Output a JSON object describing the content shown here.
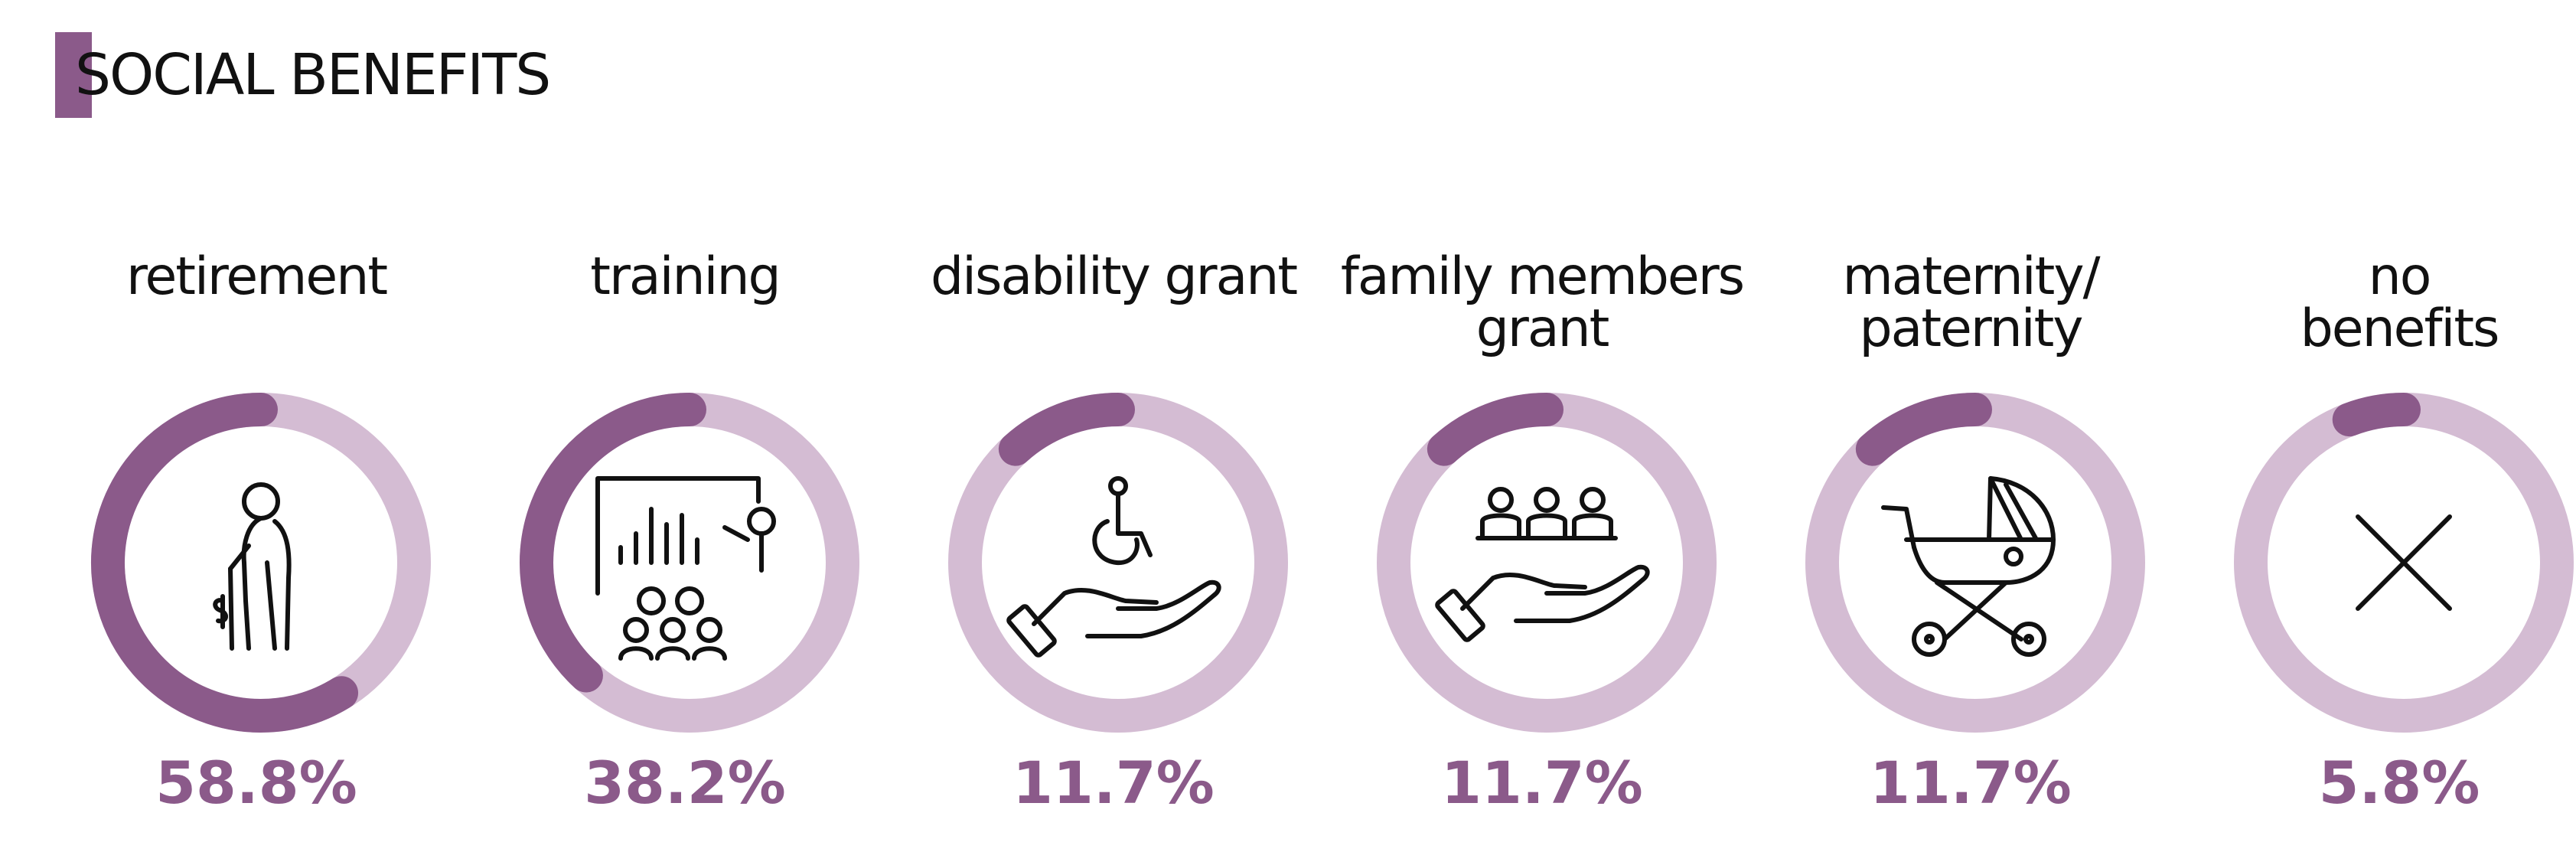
{
  "header": {
    "title": "SOCIAL BENEFITS"
  },
  "colors": {
    "accent": "#8b5a8a",
    "track": "#d4bcd3",
    "text": "#111111"
  },
  "chart_data": {
    "type": "donut",
    "title": "SOCIAL BENEFITS",
    "unit": "%",
    "categories": [
      "retirement",
      "training",
      "disability grant",
      "family members grant",
      "maternity/ paternity",
      "no benefits"
    ],
    "values": [
      58.8,
      38.2,
      11.7,
      11.7,
      11.7,
      5.8
    ],
    "display_labels": [
      "58.8%",
      "38.2%",
      "11.7%",
      "11.7%",
      "11.7%",
      "5.8%"
    ],
    "label_lines": [
      [
        "retirement"
      ],
      [
        "training"
      ],
      [
        "disability grant"
      ],
      [
        "family members",
        "grant"
      ],
      [
        "maternity/",
        "paternity"
      ],
      [
        "no",
        "benefits"
      ]
    ],
    "icons": [
      "elderly-person-icon",
      "training-class-icon",
      "disability-grant-icon",
      "family-grant-icon",
      "baby-stroller-icon",
      "cross-icon"
    ]
  }
}
